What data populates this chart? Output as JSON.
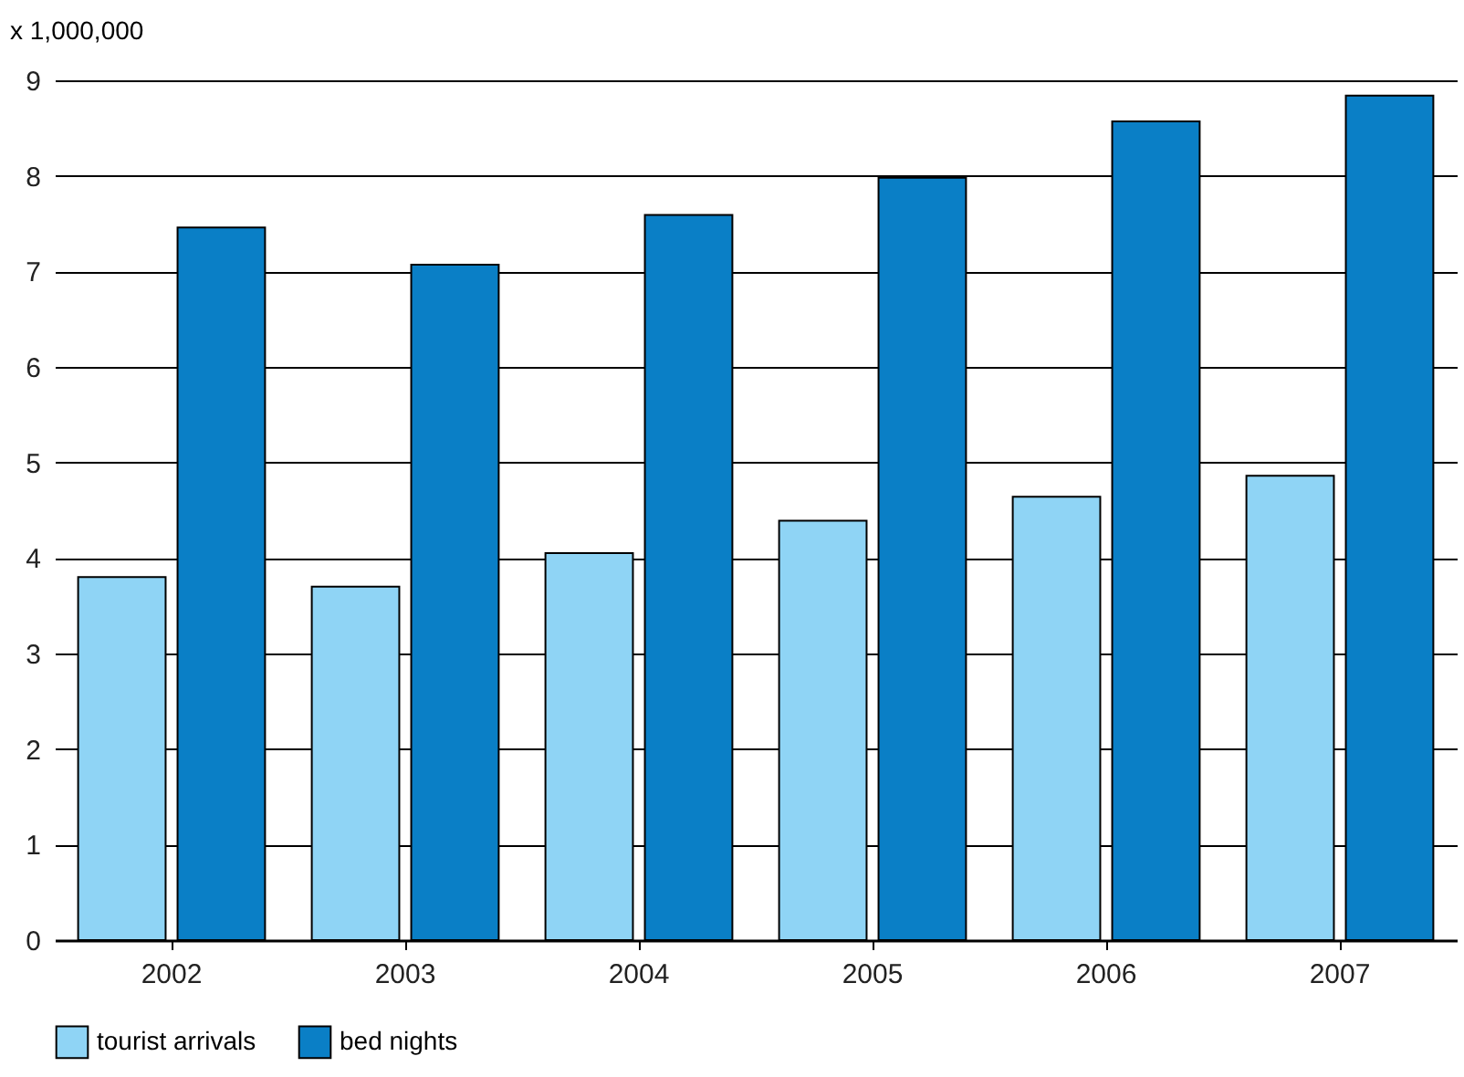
{
  "chart_data": {
    "type": "bar",
    "ylabel": "x 1,000,000",
    "categories": [
      "2002",
      "2003",
      "2004",
      "2005",
      "2006",
      "2007"
    ],
    "series": [
      {
        "name": "tourist arrivals",
        "color": "#8fd4f5",
        "values": [
          3.8,
          3.7,
          4.05,
          4.39,
          4.64,
          4.86
        ]
      },
      {
        "name": "bed nights",
        "color": "#0a7fc6",
        "values": [
          7.46,
          7.07,
          7.59,
          7.98,
          8.57,
          8.84
        ]
      }
    ],
    "ylim": [
      0,
      9
    ],
    "yticks": [
      0,
      1,
      2,
      3,
      4,
      5,
      6,
      7,
      8,
      9
    ],
    "grid": "y",
    "legend": "bottom left"
  }
}
